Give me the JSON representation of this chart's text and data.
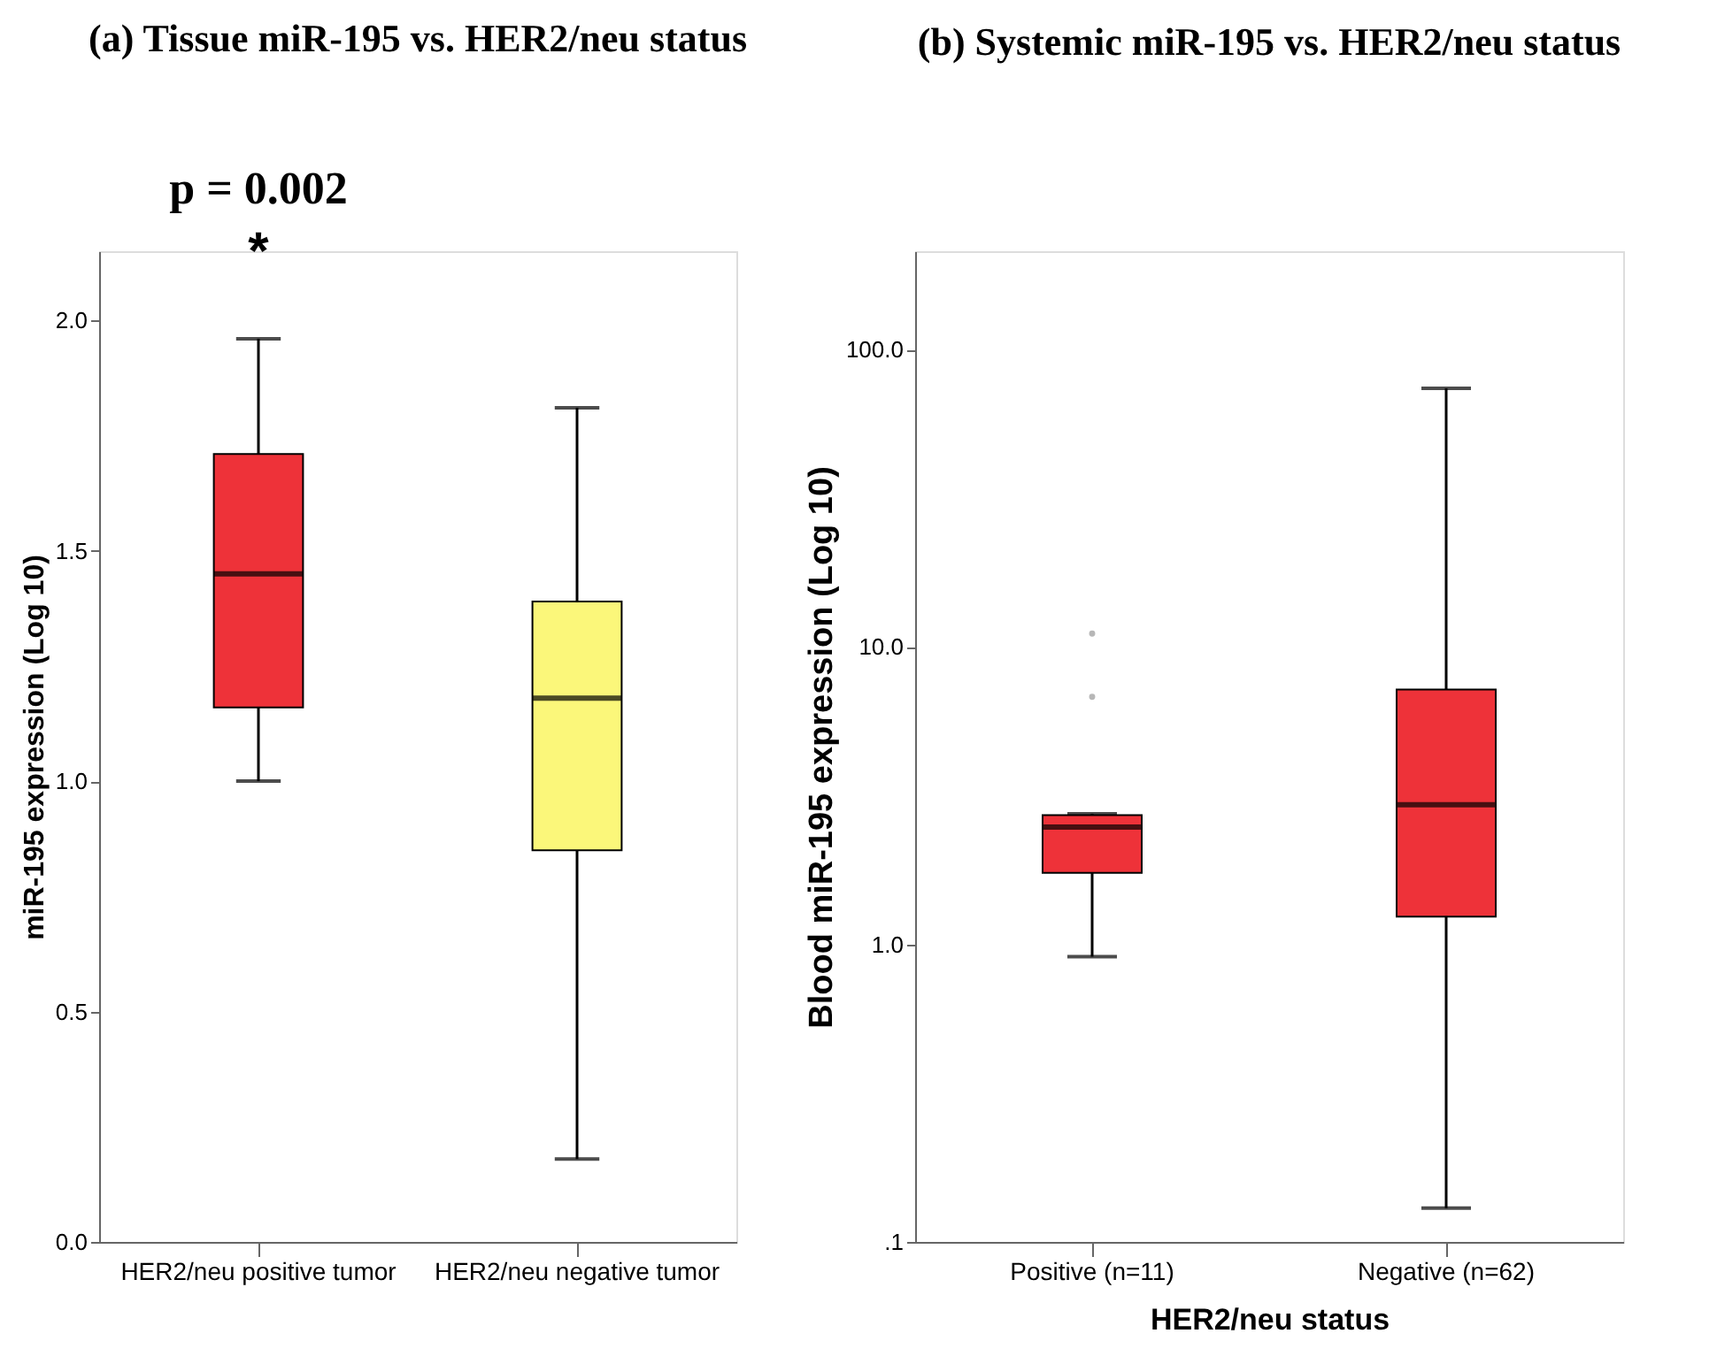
{
  "chart_data": [
    {
      "type": "box",
      "title": "(a) Tissue miR-195 vs. HER2/neu status",
      "ylabel": "miR-195 expression (Log 10)",
      "categories": [
        "HER2/neu positive tumor",
        "HER2/neu negative tumor"
      ],
      "colors": [
        "#ee3239",
        "#fbf77a"
      ],
      "boxes": [
        {
          "low": 1.0,
          "q1": 1.16,
          "median": 1.45,
          "q3": 1.71,
          "high": 1.96
        },
        {
          "low": 0.18,
          "q1": 0.85,
          "median": 1.18,
          "q3": 1.39,
          "high": 1.81
        }
      ],
      "ylim": [
        0,
        2.15
      ],
      "yticks": [
        {
          "value": 0,
          "label": "0.0"
        },
        {
          "value": 0.5,
          "label": "0.5"
        },
        {
          "value": 1,
          "label": "1.0"
        },
        {
          "value": 1.5,
          "label": "1.5"
        },
        {
          "value": 2,
          "label": "2.0"
        }
      ],
      "annotations": [
        "p = 0.002",
        "*"
      ],
      "grid": false
    },
    {
      "type": "box",
      "title": "(b) Systemic miR-195 vs. HER2/neu status",
      "xlabel": "HER2/neu status",
      "ylabel": "Blood miR-195 expression (Log 10)",
      "categories": [
        "Positive (n=11)",
        "Negative (n=62)"
      ],
      "colors": [
        "#ee3239",
        "#ee3239"
      ],
      "boxes": [
        {
          "low": 0.91,
          "q1": 1.74,
          "median": 2.48,
          "q3": 2.72,
          "high": 2.75,
          "outliers": [
            6.8,
            11.1
          ]
        },
        {
          "low": 0.13,
          "q1": 1.24,
          "median": 2.95,
          "q3": 7.2,
          "high": 74
        }
      ],
      "log": true,
      "ylim": [
        0.1,
        214
      ],
      "yticks": [
        {
          "value": 0.1,
          "label": ".1"
        },
        {
          "value": 1,
          "label": "1.0"
        },
        {
          "value": 10,
          "label": "10.0"
        },
        {
          "value": 100,
          "label": "100.0"
        }
      ],
      "grid": false
    }
  ]
}
